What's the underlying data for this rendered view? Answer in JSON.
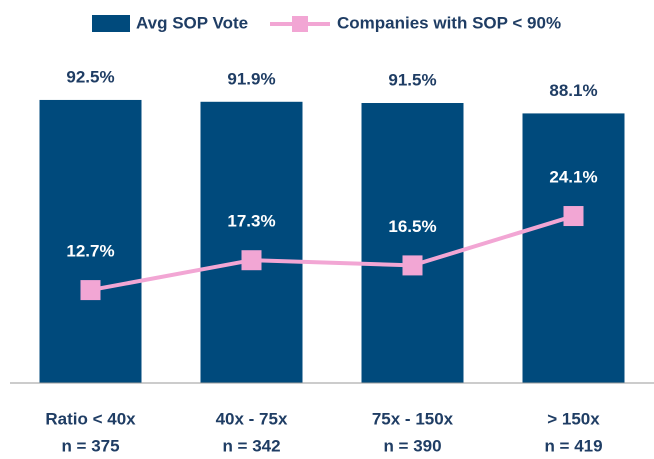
{
  "chart_data": {
    "type": "bar_line",
    "categories": [
      [
        "Ratio < 40x",
        "n = 375"
      ],
      [
        "40x - 75x",
        "n = 342"
      ],
      [
        "75x - 150x",
        "n = 390"
      ],
      [
        "> 150x",
        "n = 419"
      ]
    ],
    "ylim": [
      0,
      100
    ],
    "y2lim": [
      -1.6,
      45.5
    ],
    "legend": "top",
    "series": [
      {
        "name": "Avg SOP Vote",
        "type": "bar",
        "color": "#004a7c",
        "values": [
          92.5,
          91.9,
          91.5,
          88.1
        ],
        "value_labels": [
          "92.5%",
          "91.9%",
          "91.5%",
          "88.1%"
        ]
      },
      {
        "name": "Companies with SOP < 90%",
        "type": "line",
        "axis": "y2",
        "color": "#f2a6d4",
        "values": [
          12.7,
          17.3,
          16.5,
          24.1
        ],
        "value_labels": [
          "12.7%",
          "17.3%",
          "16.5%",
          "24.1%"
        ]
      }
    ]
  }
}
